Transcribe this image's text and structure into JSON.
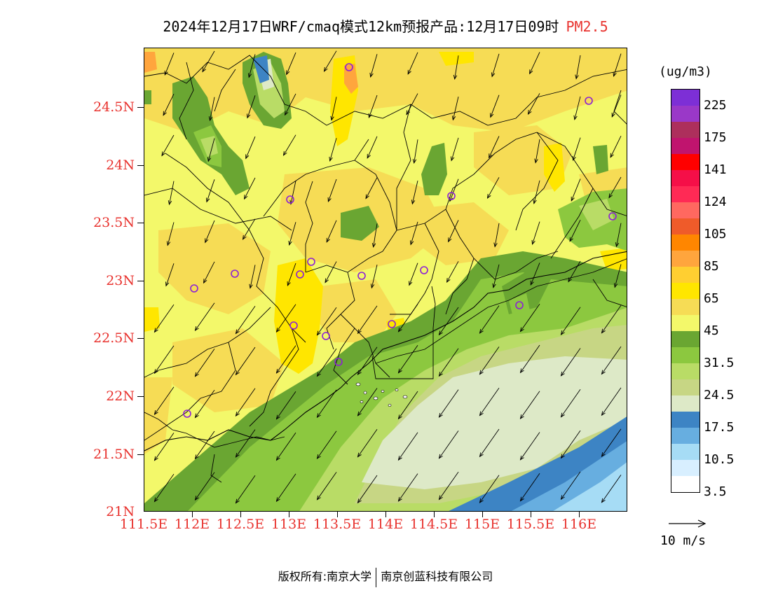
{
  "title": {
    "main": "2024年12月17日WRF/cmaq模式12km预报产品:12月17日09时",
    "variable": "PM2.5"
  },
  "axes": {
    "lat_labels": [
      "24.5N",
      "24N",
      "23.5N",
      "23N",
      "22.5N",
      "22N",
      "21.5N",
      "21N"
    ],
    "lon_labels": [
      "111.5E",
      "112E",
      "112.5E",
      "113E",
      "113.5E",
      "114E",
      "114.5E",
      "115E",
      "115.5E",
      "116E"
    ]
  },
  "colorbar": {
    "unit": "(ug/m3)",
    "labels": [
      "225",
      "175",
      "141",
      "124",
      "105",
      "85",
      "65",
      "45",
      "31.5",
      "24.5",
      "17.5",
      "10.5",
      "3.5"
    ],
    "colors": [
      "#7d2fd6",
      "#9a38c8",
      "#ad2f5c",
      "#c0146e",
      "#ff0000",
      "#f50f48",
      "#ff2a55",
      "#ff6860",
      "#ef5b2a",
      "#ff8600",
      "#ffa53d",
      "#ffcf31",
      "#ffe600",
      "#f6dc55",
      "#f3f86a",
      "#6aa632",
      "#8cc83f",
      "#b9dc66",
      "#c7d684",
      "#dde9c7",
      "#3d84c4",
      "#67aee0",
      "#a6dcf5",
      "#d8efff",
      "#ffffff"
    ]
  },
  "wind_key": {
    "label": "10 m/s"
  },
  "footer": {
    "left": "版权所有:南京大学",
    "right": "南京创蓝科技有限公司"
  },
  "stations_count": 17
}
